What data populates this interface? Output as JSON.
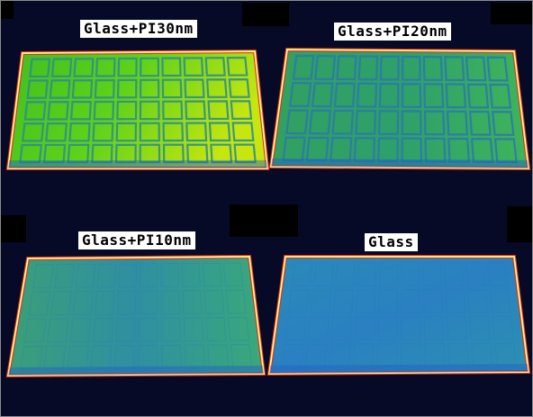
{
  "panels": [
    {
      "label": "Glass+PI30nm",
      "fill_top": "#3fbf20",
      "fill_mid": "#5fd21a",
      "fill_bright": "#c7e60f",
      "grid": "#2f8f88",
      "cells_visible": true
    },
    {
      "label": "Glass+PI20nm",
      "fill_top": "#32a060",
      "fill_mid": "#2ea06a",
      "fill_bright": "#3fb45a",
      "grid": "#2b7aa8",
      "cells_visible": true
    },
    {
      "label": "Glass+PI10nm",
      "fill_top": "#3a9f78",
      "fill_mid": "#2f8fa2",
      "fill_bright": "#3aa87a",
      "grid": "#2a78b6",
      "cells_visible": false
    },
    {
      "label": "Glass",
      "fill_top": "#2a8ab8",
      "fill_mid": "#2a80c0",
      "fill_bright": "#2d90b0",
      "grid": "#2578c0",
      "cells_visible": false
    }
  ],
  "colors": {
    "background": "#060a26",
    "edge_red": "#e02a1e",
    "edge_yellow": "#f2e23a",
    "edge_white": "#ffffff"
  }
}
